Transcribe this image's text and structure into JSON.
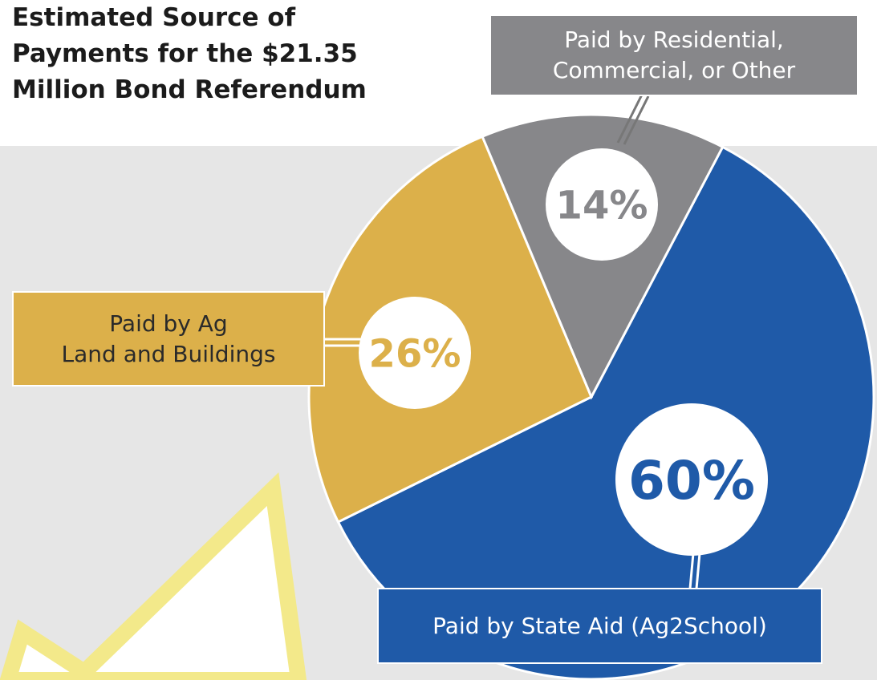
{
  "chart_data": {
    "type": "pie",
    "title": "Estimated Source of\nPayments for the $21.35\nMillion Bond Referendum",
    "categories": [
      "Paid by State Aid (Ag2School)",
      "Paid by Ag\nLand and Buildings",
      "Paid by Residential,\nCommercial, or Other"
    ],
    "values": [
      60,
      26,
      14
    ],
    "value_labels": [
      "60%",
      "26%",
      "14%"
    ],
    "colors": [
      "#1f5aa8",
      "#dcb04a",
      "#87878a"
    ]
  }
}
